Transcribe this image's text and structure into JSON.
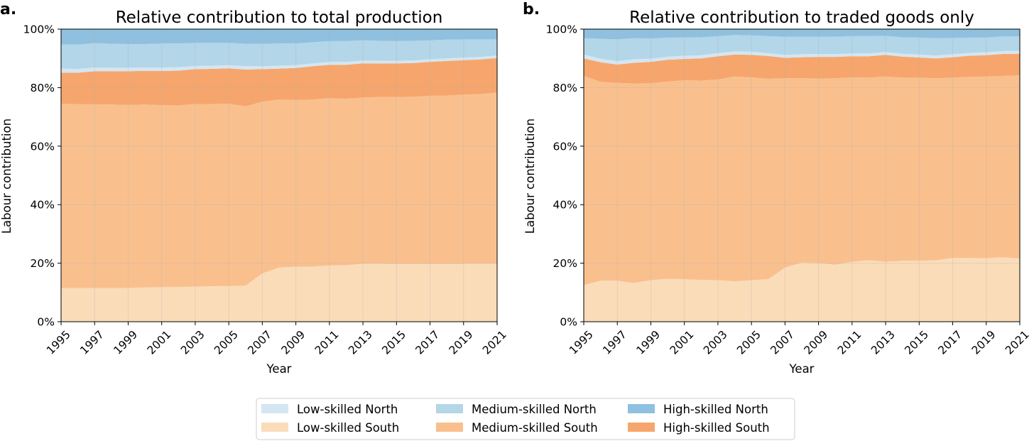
{
  "figure": {
    "legend": [
      {
        "label": "Low-skilled North",
        "color": "#d4e6f2"
      },
      {
        "label": "Medium-skilled North",
        "color": "#b3d6e8"
      },
      {
        "label": "High-skilled North",
        "color": "#8fc0df"
      },
      {
        "label": "Low-skilled South",
        "color": "#fbdcb9"
      },
      {
        "label": "Medium-skilled South",
        "color": "#f9c08e"
      },
      {
        "label": "High-skilled South",
        "color": "#f6a66c"
      }
    ],
    "legend_placement": "bottom-center"
  },
  "chart_data": [
    {
      "type": "area",
      "panel_label": "a.",
      "title": "Relative contribution to total production",
      "xlabel": "Year",
      "ylabel": "Labour contribution",
      "xlim": [
        1995,
        2021
      ],
      "ylim": [
        0,
        100
      ],
      "x_ticks": [
        "1995",
        "1997",
        "1999",
        "2001",
        "2003",
        "2005",
        "2007",
        "2009",
        "2011",
        "2013",
        "2015",
        "2017",
        "2019",
        "2021"
      ],
      "y_ticks": [
        "0%",
        "20%",
        "40%",
        "60%",
        "80%",
        "100%"
      ],
      "grid": true,
      "stacked": true,
      "x": [
        1995,
        1996,
        1997,
        1998,
        1999,
        2000,
        2001,
        2002,
        2003,
        2004,
        2005,
        2006,
        2007,
        2008,
        2009,
        2010,
        2011,
        2012,
        2013,
        2014,
        2015,
        2016,
        2017,
        2018,
        2019,
        2020,
        2021
      ],
      "series": [
        {
          "name": "Low-skilled South",
          "color": "#fbdcb9",
          "values": [
            11.5,
            11.5,
            11.5,
            11.5,
            11.5,
            11.7,
            11.8,
            11.9,
            12.0,
            12.1,
            12.2,
            12.3,
            16.5,
            18.5,
            18.8,
            18.8,
            19.2,
            19.3,
            19.8,
            19.8,
            19.7,
            19.7,
            19.7,
            19.7,
            19.8,
            19.8,
            19.8
          ]
        },
        {
          "name": "Medium-skilled South",
          "color": "#f9c08e",
          "values": [
            63.0,
            62.8,
            62.8,
            62.7,
            62.6,
            62.5,
            62.2,
            62.0,
            62.4,
            62.3,
            62.3,
            61.3,
            58.7,
            57.4,
            57.0,
            57.1,
            57.2,
            56.9,
            56.8,
            57.0,
            57.1,
            57.2,
            57.5,
            57.6,
            57.8,
            58.0,
            58.5
          ]
        },
        {
          "name": "High-skilled South",
          "color": "#f6a66c",
          "values": [
            10.6,
            10.8,
            11.3,
            11.4,
            11.5,
            11.5,
            11.7,
            11.9,
            11.9,
            12.0,
            12.1,
            12.6,
            11.1,
            10.6,
            10.9,
            11.4,
            11.4,
            11.6,
            11.7,
            11.5,
            11.5,
            11.5,
            11.6,
            11.8,
            11.8,
            11.8,
            11.8
          ]
        },
        {
          "name": "Low-skilled North",
          "color": "#d4e6f2",
          "values": [
            1.4,
            1.3,
            1.3,
            1.2,
            1.2,
            1.2,
            1.2,
            1.2,
            1.1,
            1.1,
            1.1,
            1.1,
            1.0,
            1.0,
            1.0,
            1.0,
            1.0,
            1.0,
            1.0,
            0.9,
            0.9,
            0.9,
            0.9,
            0.9,
            0.9,
            0.9,
            0.9
          ]
        },
        {
          "name": "Medium-skilled North",
          "color": "#b3d6e8",
          "values": [
            8.2,
            8.3,
            8.3,
            8.2,
            8.1,
            8.0,
            8.2,
            8.1,
            7.9,
            7.8,
            7.6,
            7.7,
            7.7,
            7.6,
            7.4,
            7.2,
            7.1,
            7.1,
            6.9,
            6.8,
            6.7,
            6.7,
            6.5,
            6.4,
            6.2,
            6.0,
            5.5
          ]
        },
        {
          "name": "High-skilled North",
          "color": "#8fc0df",
          "values": [
            5.3,
            5.3,
            4.8,
            5.0,
            5.1,
            5.1,
            4.9,
            4.9,
            4.7,
            4.7,
            4.7,
            5.0,
            5.0,
            4.9,
            4.9,
            4.5,
            4.1,
            4.1,
            3.8,
            4.0,
            4.1,
            4.0,
            3.8,
            3.6,
            3.5,
            3.5,
            3.5
          ]
        }
      ]
    },
    {
      "type": "area",
      "panel_label": "b.",
      "title": "Relative contribution to traded goods only",
      "xlabel": "Year",
      "ylabel": "Labour contribution",
      "xlim": [
        1995,
        2021
      ],
      "ylim": [
        0,
        100
      ],
      "x_ticks": [
        "1995",
        "1997",
        "1999",
        "2001",
        "2003",
        "2005",
        "2007",
        "2009",
        "2011",
        "2013",
        "2015",
        "2017",
        "2019",
        "2021"
      ],
      "y_ticks": [
        "0%",
        "20%",
        "40%",
        "60%",
        "80%",
        "100%"
      ],
      "grid": true,
      "stacked": true,
      "x": [
        1995,
        1996,
        1997,
        1998,
        1999,
        2000,
        2001,
        2002,
        2003,
        2004,
        2005,
        2006,
        2007,
        2008,
        2009,
        2010,
        2011,
        2012,
        2013,
        2014,
        2015,
        2016,
        2017,
        2018,
        2019,
        2020,
        2021
      ],
      "series": [
        {
          "name": "Low-skilled South",
          "color": "#fbdcb9",
          "values": [
            12.5,
            14.0,
            14.0,
            13.2,
            14.2,
            14.6,
            14.5,
            14.3,
            14.2,
            13.8,
            14.2,
            14.5,
            18.5,
            20.2,
            20.0,
            19.5,
            20.5,
            21.0,
            20.5,
            20.8,
            20.8,
            21.0,
            21.8,
            21.8,
            21.7,
            22.0,
            21.6
          ]
        },
        {
          "name": "Medium-skilled South",
          "color": "#f9c08e",
          "values": [
            71.5,
            68.0,
            67.6,
            68.2,
            67.3,
            67.5,
            68.0,
            68.1,
            68.6,
            70.0,
            69.3,
            68.5,
            64.7,
            63.0,
            63.1,
            63.7,
            63.0,
            62.4,
            63.3,
            62.6,
            62.6,
            62.2,
            61.6,
            61.9,
            62.1,
            62.0,
            62.6
          ]
        },
        {
          "name": "High-skilled South",
          "color": "#f6a66c",
          "values": [
            6.0,
            6.7,
            6.3,
            7.1,
            7.3,
            7.4,
            7.3,
            7.6,
            7.9,
            7.5,
            7.7,
            7.8,
            7.0,
            7.2,
            7.4,
            7.3,
            7.2,
            7.3,
            7.4,
            7.2,
            6.9,
            6.8,
            7.0,
            7.2,
            7.3,
            7.5,
            7.4
          ]
        },
        {
          "name": "Low-skilled North",
          "color": "#d4e6f2",
          "values": [
            1.3,
            1.2,
            1.2,
            1.2,
            1.1,
            1.1,
            1.1,
            1.1,
            1.1,
            1.1,
            1.1,
            1.0,
            1.0,
            1.0,
            1.0,
            1.0,
            1.0,
            1.0,
            1.0,
            1.0,
            1.0,
            1.0,
            1.0,
            1.0,
            1.0,
            1.0,
            1.0
          ]
        },
        {
          "name": "Medium-skilled North",
          "color": "#b3d6e8",
          "values": [
            5.6,
            6.8,
            7.4,
            7.2,
            6.9,
            6.5,
            6.2,
            6.1,
            5.8,
            5.6,
            5.6,
            5.8,
            6.2,
            6.0,
            5.9,
            5.9,
            5.9,
            5.9,
            5.5,
            5.6,
            5.8,
            5.9,
            5.6,
            5.2,
            5.0,
            5.0,
            4.9
          ]
        },
        {
          "name": "High-skilled North",
          "color": "#8fc0df",
          "values": [
            3.1,
            3.3,
            3.5,
            3.1,
            3.2,
            2.9,
            2.9,
            2.8,
            2.4,
            2.0,
            2.1,
            2.4,
            2.6,
            2.6,
            2.6,
            2.6,
            2.4,
            2.4,
            2.3,
            2.8,
            2.9,
            3.1,
            3.0,
            2.9,
            2.9,
            2.5,
            2.5
          ]
        }
      ]
    }
  ]
}
